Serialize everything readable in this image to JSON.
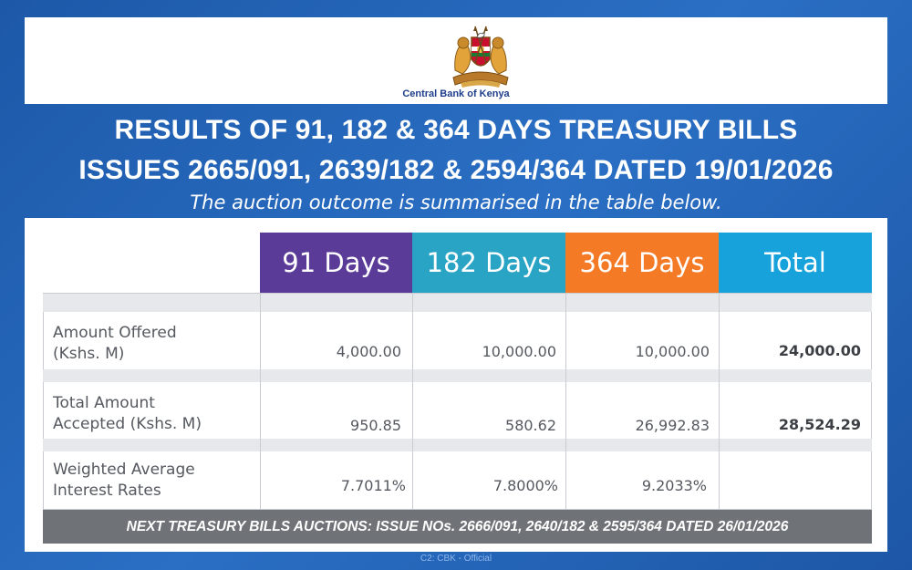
{
  "header": {
    "logo_text": "Central Bank of Kenya",
    "logo_icon": "coat-of-arms-icon",
    "title_line1": "RESULTS OF 91, 182 & 364 DAYS TREASURY BILLS",
    "title_line2": "ISSUES 2665/091, 2639/182 & 2594/364 DATED 19/01/2026",
    "subtitle": "The auction outcome is summarised in the table below."
  },
  "table": {
    "columns": [
      {
        "label": "91 Days",
        "color": "#5b3b98"
      },
      {
        "label": "182 Days",
        "color": "#29a4c4"
      },
      {
        "label": "364 Days",
        "color": "#f57a26"
      },
      {
        "label": "Total",
        "color": "#17a2db"
      }
    ],
    "rows": [
      {
        "label_line1": "Amount Offered",
        "label_line2": "(Kshs. M)",
        "values": [
          "4,000.00",
          "10,000.00",
          "10,000.00",
          "24,000.00"
        ]
      },
      {
        "label_line1": "Total Amount",
        "label_line2": "Accepted (Kshs. M)",
        "values": [
          "950.85",
          "580.62",
          "26,992.83",
          "28,524.29"
        ]
      },
      {
        "label_line1": "Weighted Average",
        "label_line2": "Interest Rates",
        "values": [
          "7.7011%",
          "7.8000%",
          "9.2033%",
          ""
        ]
      }
    ]
  },
  "footer": {
    "next_auction": "NEXT TREASURY BILLS AUCTIONS: ISSUE NOs. 2666/091, 2640/182 & 2595/364 DATED 26/01/2026",
    "classification": "C2: CBK - Official"
  }
}
